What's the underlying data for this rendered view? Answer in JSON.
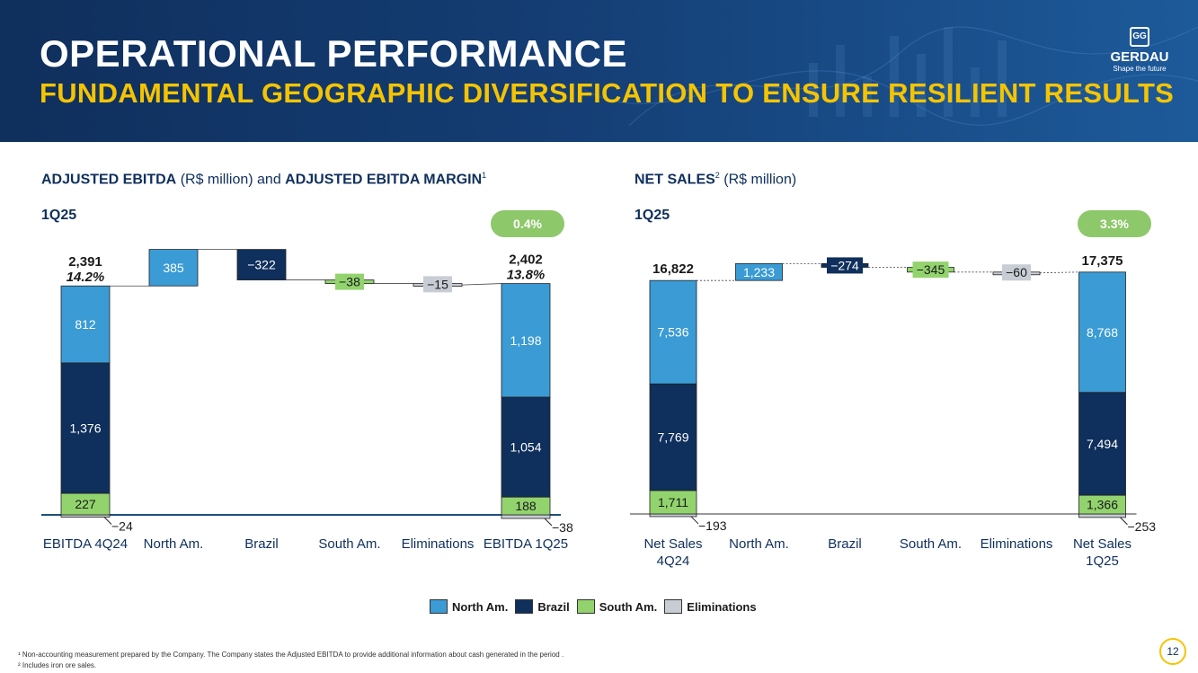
{
  "header": {
    "title": "OPERATIONAL PERFORMANCE",
    "subtitle": "FUNDAMENTAL GEOGRAPHIC DIVERSIFICATION TO ENSURE RESILIENT RESULTS"
  },
  "logo": {
    "name": "GERDAU",
    "tagline": "Shape the future"
  },
  "colors": {
    "north_am": "#3a9bd5",
    "brazil": "#0f2f5c",
    "south_am": "#92d36e",
    "eliminations": "#c8ccd4",
    "pill": "#8dc86b",
    "accent": "#f5c400"
  },
  "left_chart": {
    "title_bold_1": "ADJUSTED EBITDA",
    "title_light_1": "(R$ million) and ",
    "title_bold_2": "ADJUSTED EBITDA MARGIN",
    "title_sup": "1",
    "period": "1Q25",
    "pill": "0.4%"
  },
  "right_chart": {
    "title_bold_1": "NET SALES",
    "title_sup": "2",
    "title_light_1": "(R$ million)",
    "period": "1Q25",
    "pill": "3.3%"
  },
  "legend": [
    "North Am.",
    "Brazil",
    "South Am.",
    "Eliminations"
  ],
  "footnotes": [
    "¹ Non-accounting measurement prepared by the Company. The Company states the Adjusted EBITDA to provide additional information about cash generated in the period .",
    "² Includes iron ore sales."
  ],
  "page_number": "12",
  "chart_data": [
    {
      "type": "bar",
      "title": "ADJUSTED EBITDA (R$ million) and ADJUSTED EBITDA MARGIN",
      "categories": [
        "EBITDA 4Q24",
        "North Am.",
        "Brazil",
        "South Am.",
        "Eliminations",
        "EBITDA 1Q25"
      ],
      "stacks": {
        "start": [
          {
            "series": "Eliminations",
            "value": -24,
            "label": "-24"
          },
          {
            "series": "South Am.",
            "value": 227,
            "label": "227"
          },
          {
            "series": "Brazil",
            "value": 1376,
            "label": "1,376"
          },
          {
            "series": "North Am.",
            "value": 812,
            "label": "812"
          }
        ],
        "end": [
          {
            "series": "Eliminations",
            "value": -38,
            "label": "-38"
          },
          {
            "series": "South Am.",
            "value": 188,
            "label": "188"
          },
          {
            "series": "Brazil",
            "value": 1054,
            "label": "1,054"
          },
          {
            "series": "North Am.",
            "value": 1198,
            "label": "1,198"
          }
        ]
      },
      "deltas": [
        {
          "series": "North Am.",
          "value": 385,
          "label": "385"
        },
        {
          "series": "Brazil",
          "value": -322,
          "label": "-322"
        },
        {
          "series": "South Am.",
          "value": -38,
          "label": "-38"
        },
        {
          "series": "Eliminations",
          "value": -15,
          "label": "-15"
        }
      ],
      "totals": [
        {
          "label": "2,391",
          "sub": "14.2%"
        },
        {
          "label": "2,402",
          "sub": "13.8%"
        }
      ],
      "ylim": [
        -60,
        3000
      ]
    },
    {
      "type": "bar",
      "title": "NET SALES (R$ million)",
      "categories": [
        "Net Sales 4Q24",
        "North Am.",
        "Brazil",
        "South Am.",
        "Eliminations",
        "Net Sales 1Q25"
      ],
      "stacks": {
        "start": [
          {
            "series": "Eliminations",
            "value": -193,
            "label": "-193"
          },
          {
            "series": "South Am.",
            "value": 1711,
            "label": "1,711"
          },
          {
            "series": "Brazil",
            "value": 7769,
            "label": "7,769"
          },
          {
            "series": "North Am.",
            "value": 7536,
            "label": "7,536"
          }
        ],
        "end": [
          {
            "series": "Eliminations",
            "value": -253,
            "label": "-253"
          },
          {
            "series": "South Am.",
            "value": 1366,
            "label": "1,366"
          },
          {
            "series": "Brazil",
            "value": 7494,
            "label": "7,494"
          },
          {
            "series": "North Am.",
            "value": 8768,
            "label": "8,768"
          }
        ]
      },
      "deltas": [
        {
          "series": "North Am.",
          "value": 1233,
          "label": "1,233"
        },
        {
          "series": "Brazil",
          "value": -274,
          "label": "-274"
        },
        {
          "series": "South Am.",
          "value": -345,
          "label": "-345"
        },
        {
          "series": "Eliminations",
          "value": -60,
          "label": "-60"
        }
      ],
      "totals": [
        {
          "label": "16,822",
          "sub": ""
        },
        {
          "label": "17,375",
          "sub": ""
        }
      ],
      "ylim": [
        -400,
        20000
      ]
    }
  ]
}
